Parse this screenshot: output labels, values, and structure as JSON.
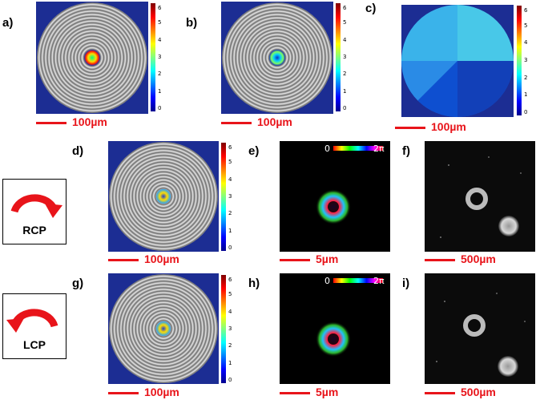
{
  "panels": {
    "a": "a)",
    "b": "b)",
    "c": "c)",
    "d": "d)",
    "e": "e)",
    "f": "f)",
    "g": "g)",
    "h": "h)",
    "i": "i)"
  },
  "scalebars": {
    "s100": "100µm",
    "s5": "5µm",
    "s500": "500µm"
  },
  "colorbar": {
    "ticks": [
      "6",
      "5",
      "4",
      "3",
      "2",
      "1",
      "0"
    ]
  },
  "polarization": {
    "rcp": "RCP",
    "lcp": "LCP"
  },
  "phase_legend": {
    "min": "0",
    "max": "2π"
  },
  "colors": {
    "scale_red": "#e8141a",
    "background_blue": "#1c2d93"
  }
}
